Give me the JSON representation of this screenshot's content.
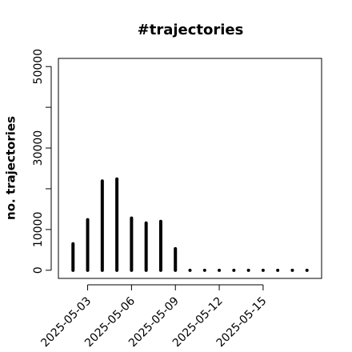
{
  "chart_data": {
    "type": "histogram-lines",
    "title": "#trajectories",
    "y_label": "no. trajectories",
    "x": [
      "2025-05-02",
      "2025-05-03",
      "2025-05-04",
      "2025-05-05",
      "2025-05-06",
      "2025-05-07",
      "2025-05-08",
      "2025-05-09",
      "2025-05-10",
      "2025-05-11",
      "2025-05-12",
      "2025-05-13",
      "2025-05-14",
      "2025-05-15",
      "2025-05-16",
      "2025-05-17",
      "2025-05-18"
    ],
    "values": [
      6500,
      12400,
      21900,
      22400,
      12800,
      11600,
      12000,
      5300,
      0,
      0,
      0,
      0,
      0,
      0,
      0,
      0,
      0
    ],
    "color": "#000000",
    "xlim": [
      "2025-05-01",
      "2025-05-19"
    ],
    "xticks": [
      "2025-05-03",
      "2025-05-06",
      "2025-05-09",
      "2025-05-12",
      "2025-05-15"
    ],
    "ylim": [
      -2000,
      52000
    ],
    "yticks": [
      0,
      10000,
      30000,
      50000
    ],
    "yticks_unlabeled": [
      20000,
      40000
    ]
  }
}
